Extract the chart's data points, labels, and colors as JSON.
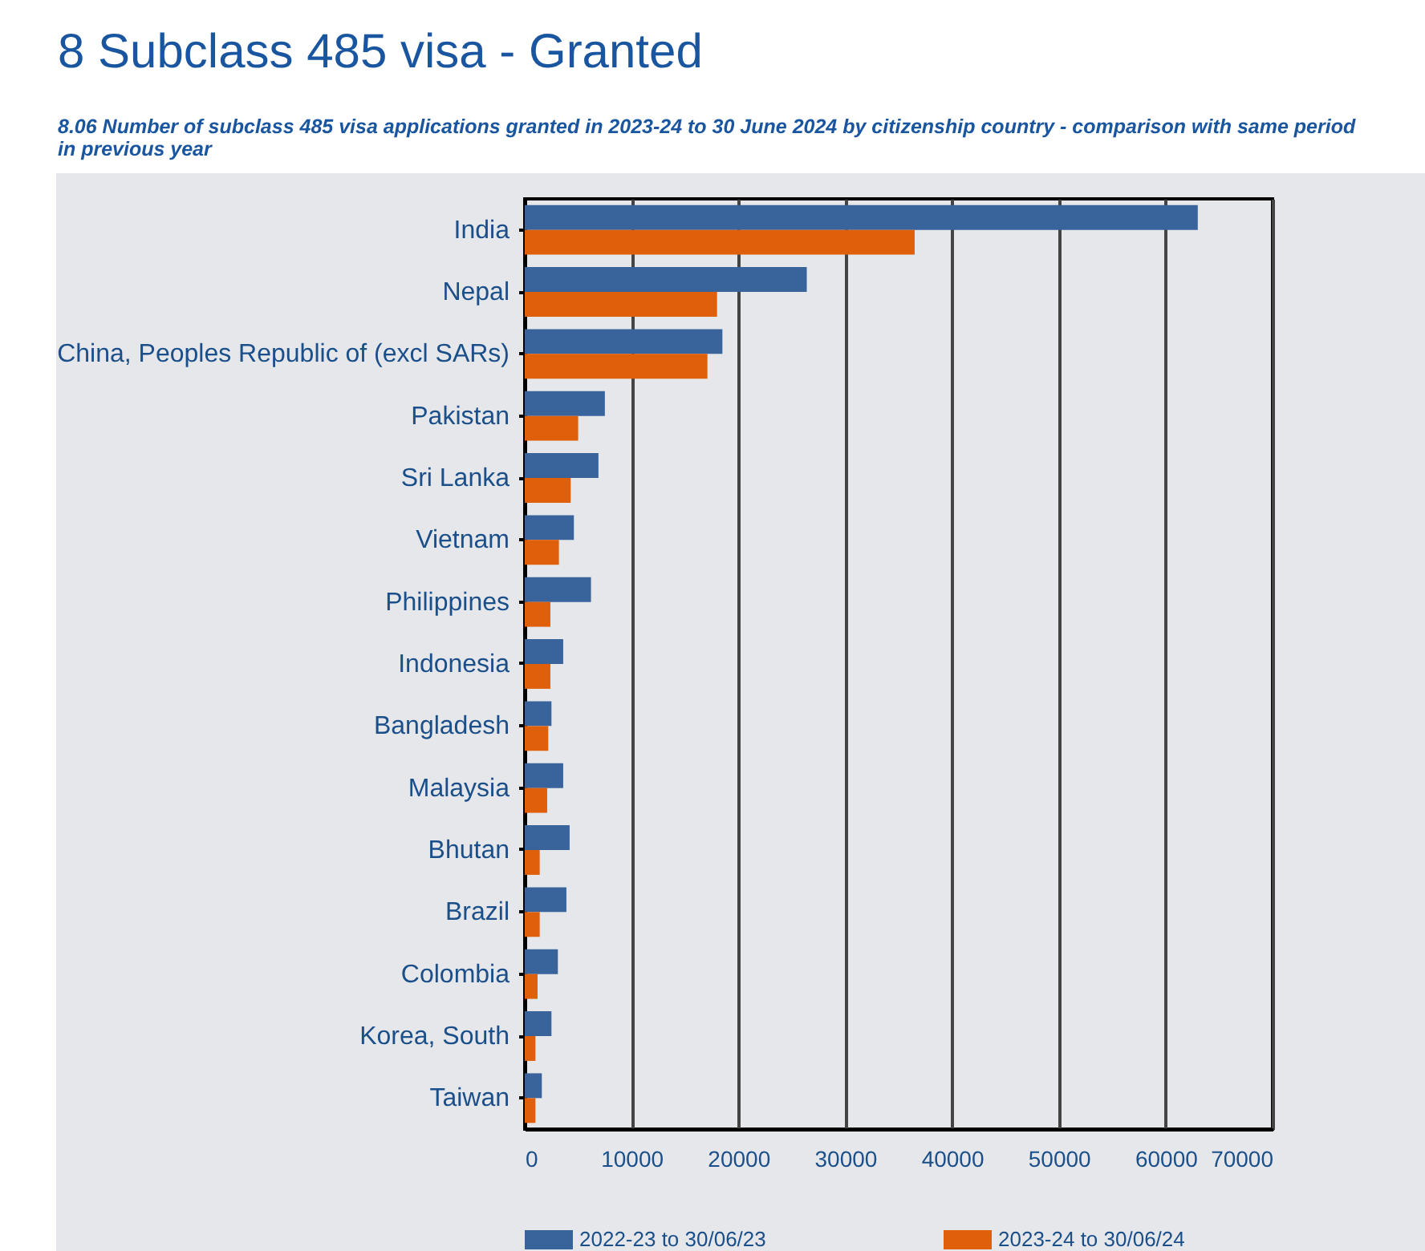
{
  "chart_data": {
    "type": "bar",
    "orientation": "horizontal",
    "title": "8 Subclass 485 visa - Granted",
    "subtitle": "8.06 Number of subclass 485 visa applications granted in 2023-24 to 30 June 2024 by citizenship country - comparison with same period in previous year",
    "categories": [
      "India",
      "Nepal",
      "China, Peoples Republic of (excl SARs)",
      "Pakistan",
      "Sri Lanka",
      "Vietnam",
      "Philippines",
      "Indonesia",
      "Bangladesh",
      "Malaysia",
      "Bhutan",
      "Brazil",
      "Colombia",
      "Korea, South",
      "Taiwan"
    ],
    "series": [
      {
        "name": "2022-23 to 30/06/23",
        "color": "#38649b",
        "values": [
          63000,
          26400,
          18500,
          7500,
          6900,
          4600,
          6200,
          3600,
          2500,
          3600,
          4200,
          3900,
          3100,
          2500,
          1600
        ]
      },
      {
        "name": "2023-24 to 30/06/24",
        "color": "#e05f0a",
        "values": [
          36500,
          18000,
          17100,
          5000,
          4300,
          3200,
          2400,
          2400,
          2200,
          2100,
          1400,
          1400,
          1200,
          1000,
          1000
        ]
      }
    ],
    "xlim": [
      0,
      70000
    ],
    "xticks": [
      0,
      10000,
      20000,
      30000,
      40000,
      50000,
      60000,
      70000
    ],
    "grid": "x",
    "legend": "bottom"
  }
}
